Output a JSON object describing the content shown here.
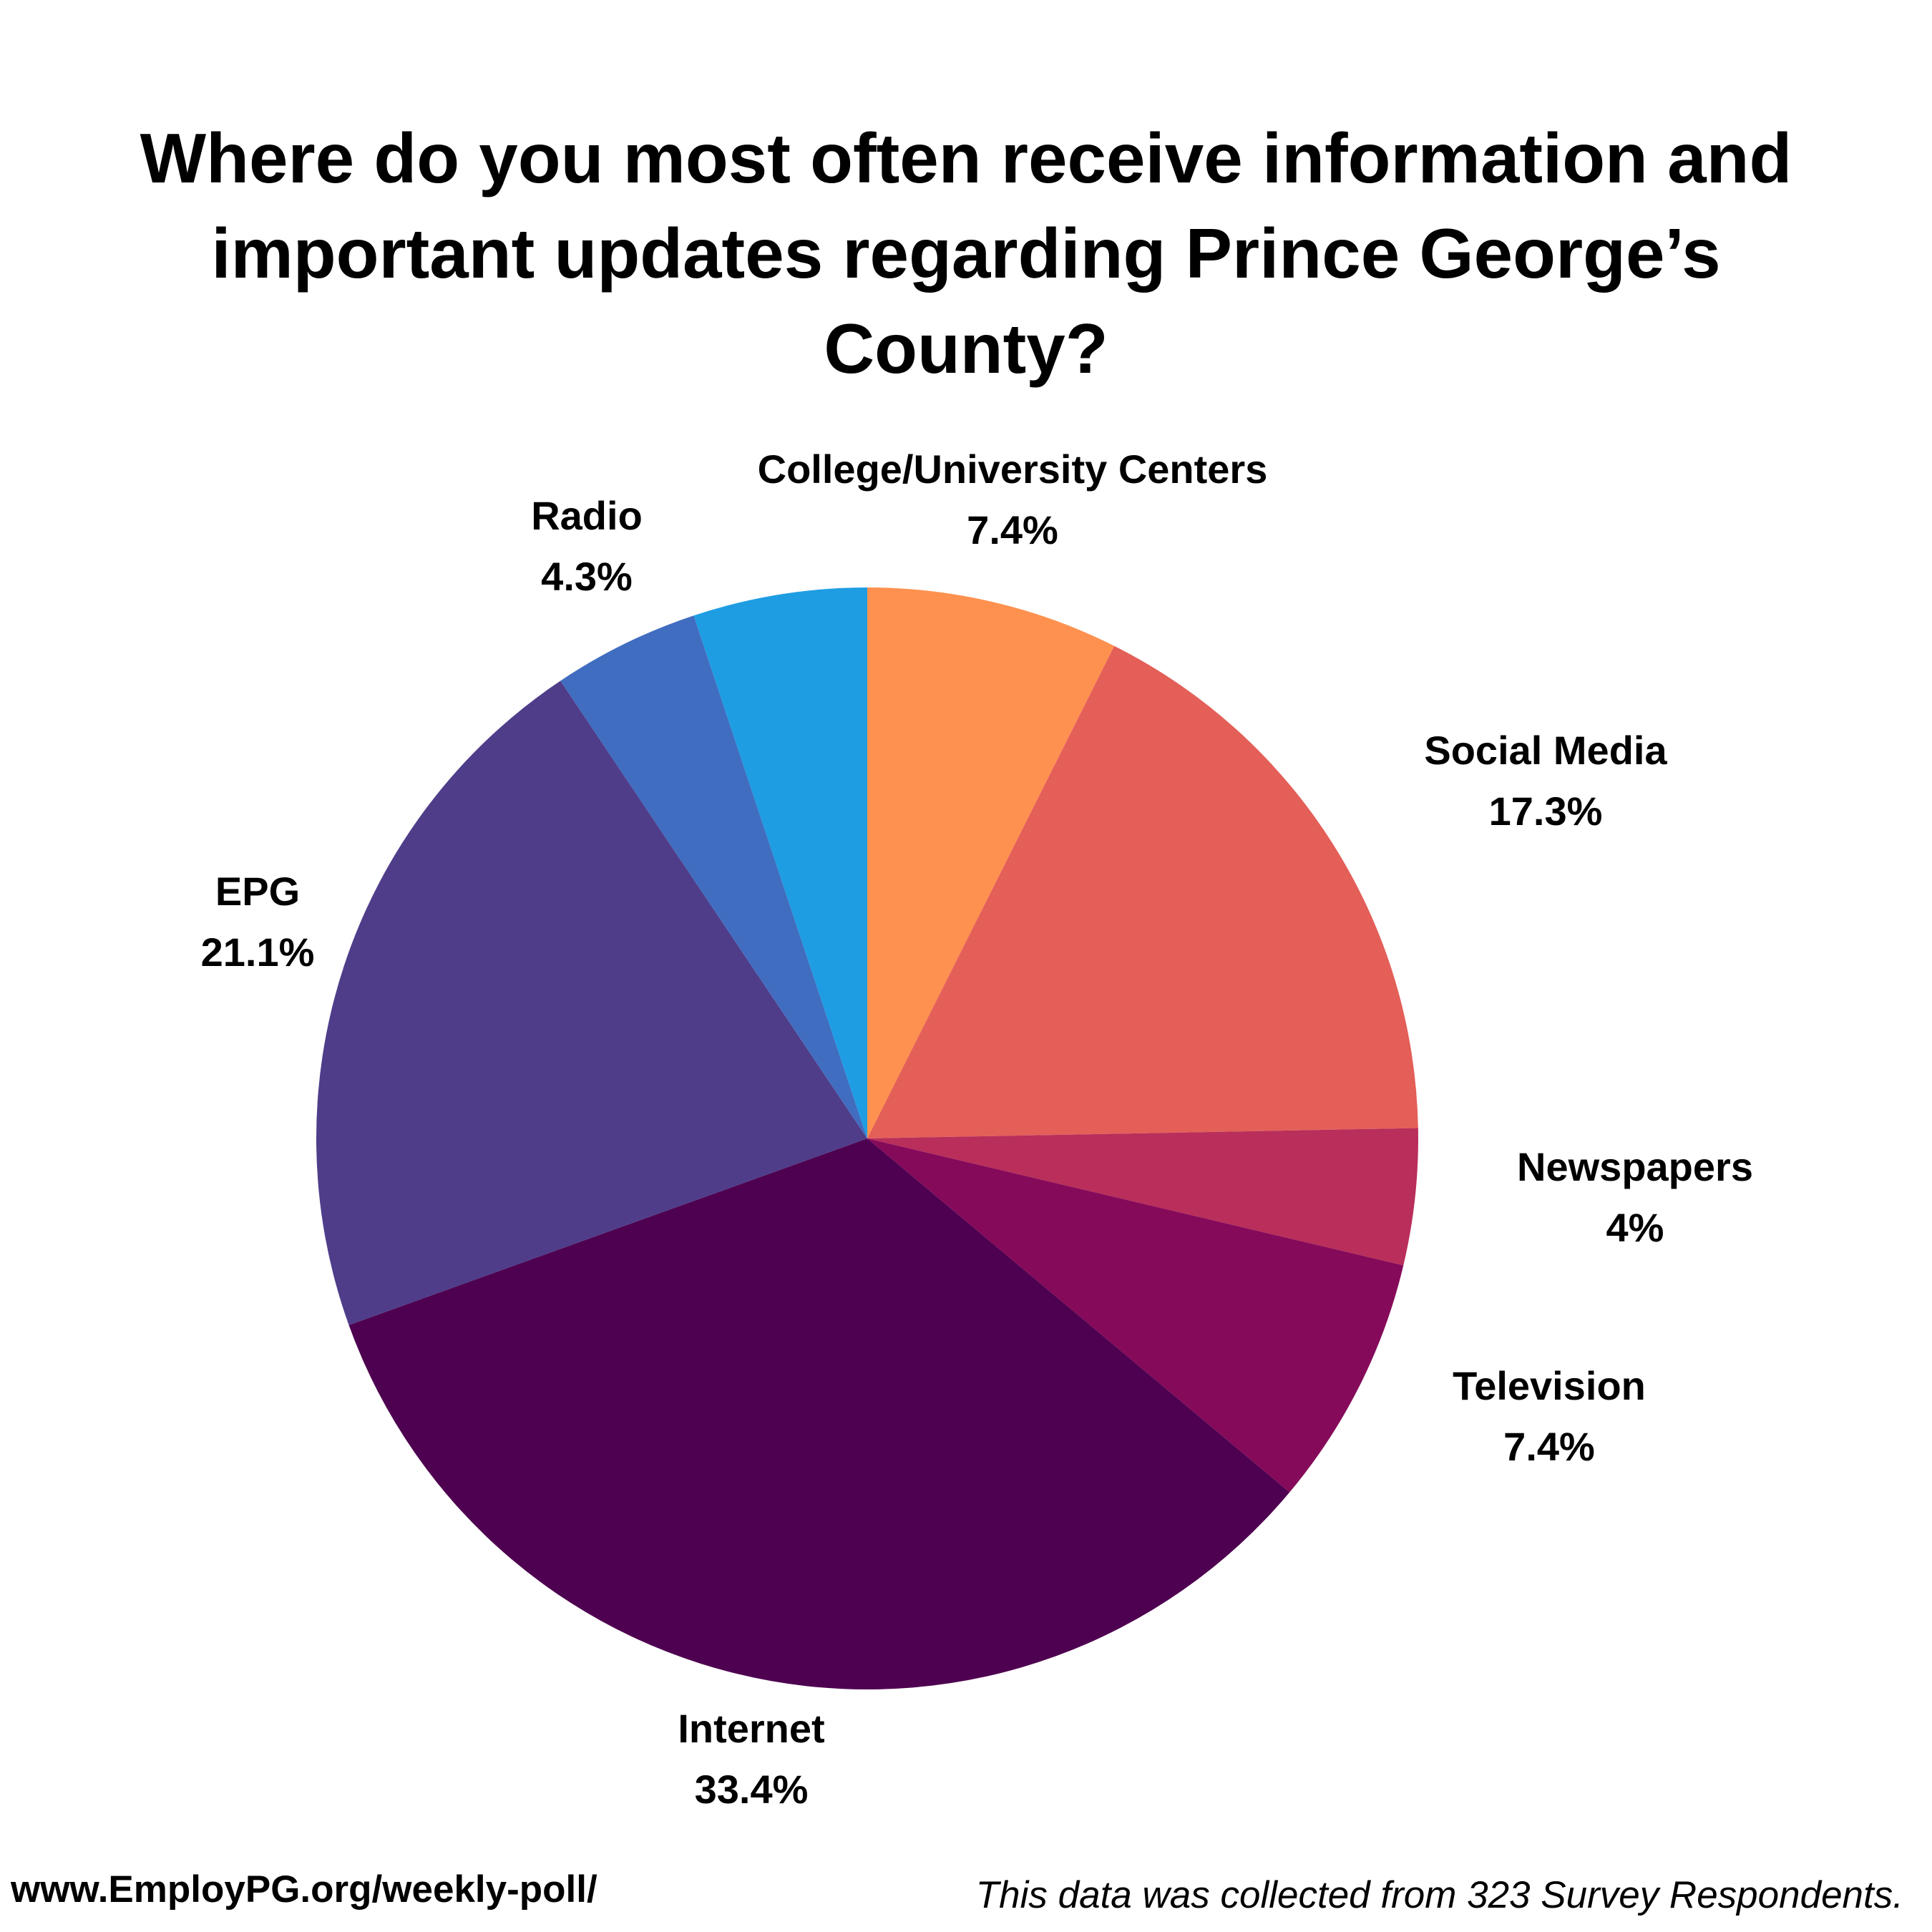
{
  "chart_data": {
    "type": "pie",
    "title": "Where do you most often receive information and important updates regarding Prince George’s County?",
    "slices": [
      {
        "label": "College/University Centers",
        "value_label": "7.4%",
        "value": 7.4,
        "color": "#FE914F"
      },
      {
        "label": "Social Media",
        "value_label": "17.3%",
        "value": 17.3,
        "color": "#E35F58"
      },
      {
        "label": "Newspapers",
        "value_label": "4%",
        "value": 4.0,
        "color": "#B92E5A"
      },
      {
        "label": "Television",
        "value_label": "7.4%",
        "value": 7.4,
        "color": "#860A5A"
      },
      {
        "label": "Internet",
        "value_label": "33.4%",
        "value": 33.4,
        "color": "#4E0150"
      },
      {
        "label": "EPG",
        "value_label": "21.1%",
        "value": 21.1,
        "color": "#4F3D8A"
      },
      {
        "label": "Radio",
        "value_label": "4.3%",
        "value": 4.3,
        "color": "#416DC0"
      },
      {
        "label": "",
        "value_label": "",
        "value": 5.1,
        "color": "#1E9DE3"
      }
    ]
  },
  "footer": {
    "url": "www.EmployPG.org/weekly-poll/",
    "note": "This data was collected from 323 Survey Respondents."
  }
}
